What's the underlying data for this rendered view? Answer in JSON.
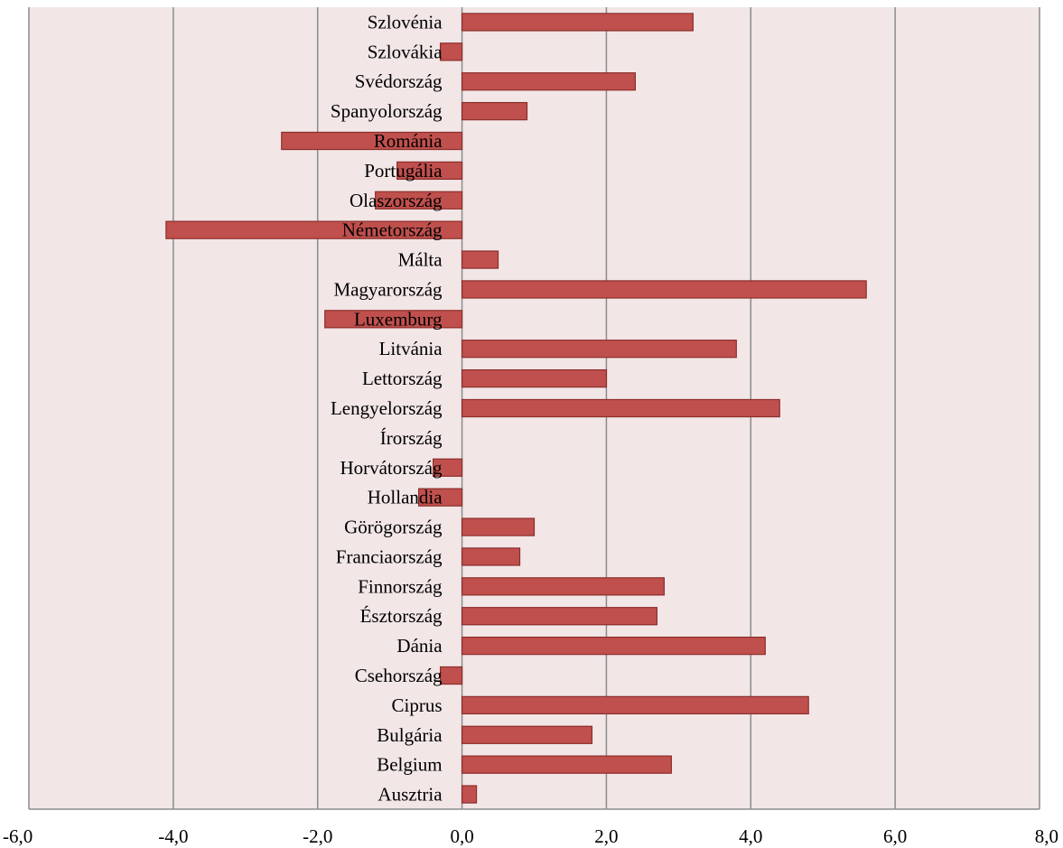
{
  "chart_data": {
    "type": "bar",
    "orientation": "horizontal",
    "title": "",
    "xlabel": "",
    "ylabel": "",
    "xlim": [
      -6,
      8
    ],
    "xticks": [
      -6,
      -4,
      -2,
      0,
      2,
      4,
      6,
      8
    ],
    "xtick_labels": [
      "-6,0",
      "-4,0",
      "-2,0",
      "0,0",
      "2,0",
      "4,0",
      "6,0",
      "8,0"
    ],
    "grid": "vertical",
    "legend": "none",
    "colors": {
      "plot_background": "#f2e6e6",
      "bar_fill": "#c0504d",
      "bar_stroke": "#8b2e2c",
      "gridline": "#8c8c8c"
    },
    "categories": [
      "Szlovénia",
      "Szlovákia",
      "Svédország",
      "Spanyolország",
      "Románia",
      "Portugália",
      "Olaszország",
      "Németország",
      "Málta",
      "Magyarország",
      "Luxemburg",
      "Litvánia",
      "Lettország",
      "Lengyelország",
      "Írország",
      "Horvátország",
      "Hollandia",
      "Görögország",
      "Franciaország",
      "Finnország",
      "Észtország",
      "Dánia",
      "Csehország",
      "Ciprus",
      "Bulgária",
      "Belgium",
      "Ausztria"
    ],
    "values": [
      3.2,
      -0.3,
      2.4,
      0.9,
      -2.5,
      -0.9,
      -1.2,
      -4.1,
      0.5,
      5.6,
      -1.9,
      3.8,
      2.0,
      4.4,
      0.0,
      -0.4,
      -0.6,
      1.0,
      0.8,
      2.8,
      2.7,
      4.2,
      -0.3,
      4.8,
      1.8,
      2.9,
      0.2
    ]
  }
}
